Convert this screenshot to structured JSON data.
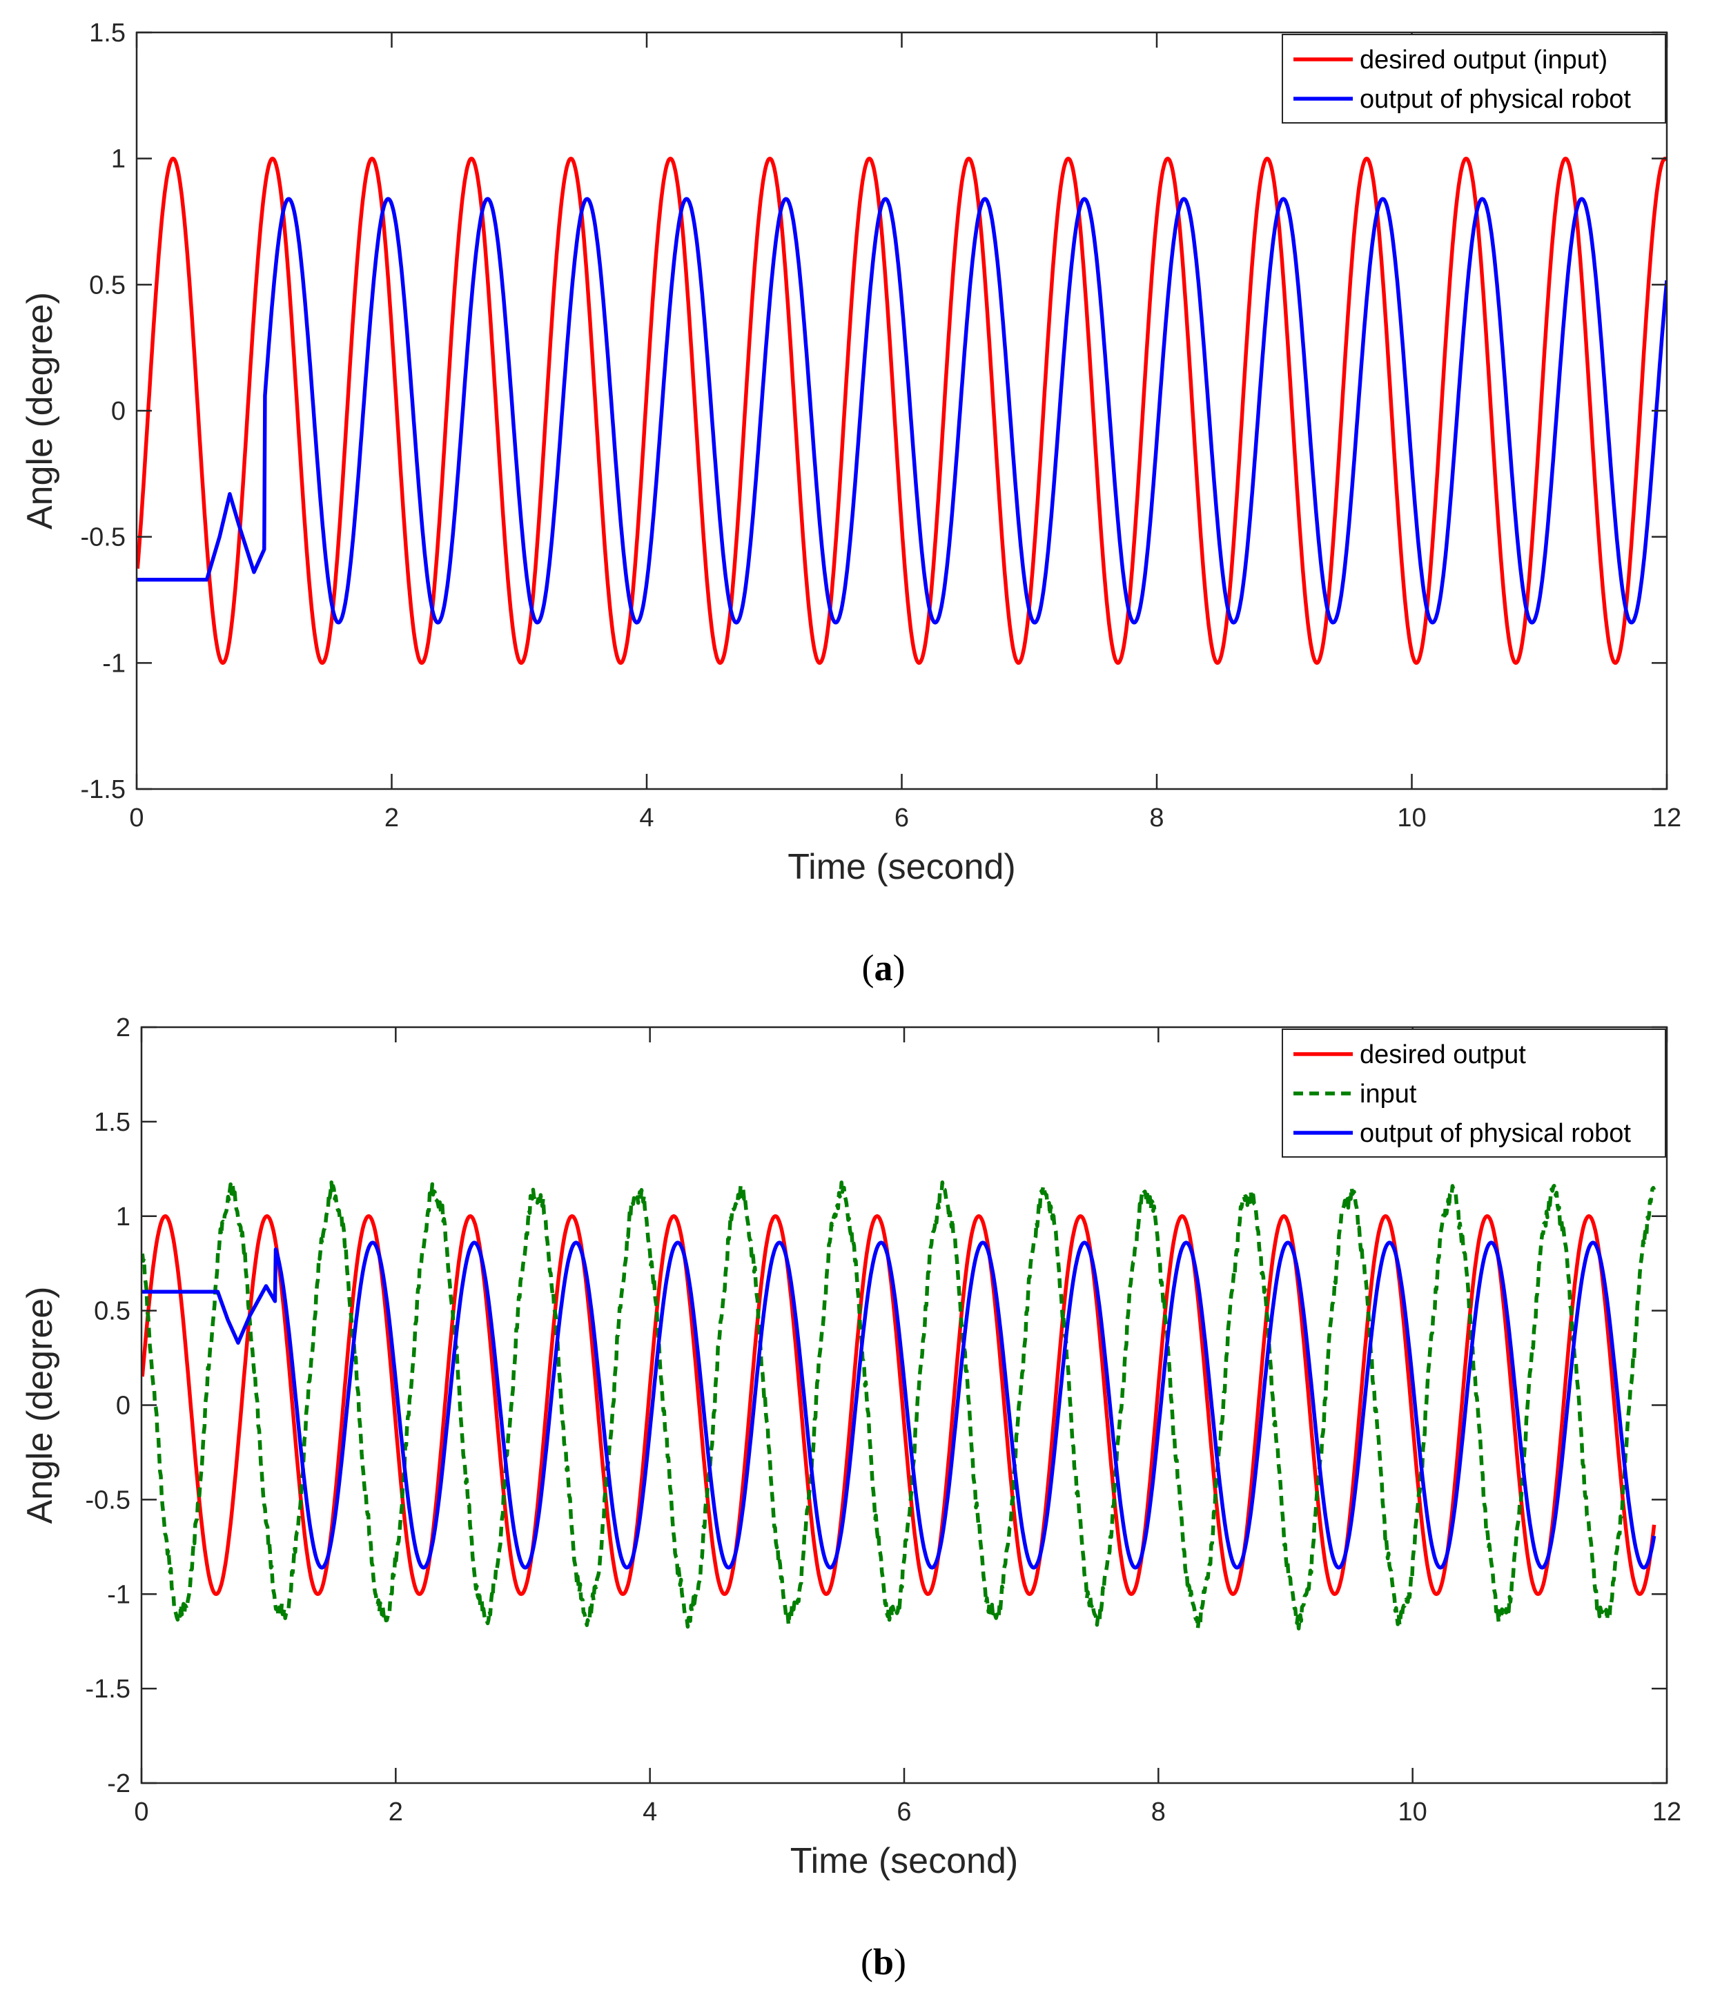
{
  "figure": {
    "captions": [
      {
        "open": "(",
        "letter": "a",
        "close": ")"
      },
      {
        "open": "(",
        "letter": "b",
        "close": ")"
      }
    ]
  },
  "chart_data": [
    {
      "type": "line",
      "panel": "a",
      "xlabel": "Time (second)",
      "ylabel": "Angle (degree)",
      "xlim": [
        0,
        12
      ],
      "ylim": [
        -1.5,
        1.5
      ],
      "xticks": [
        0,
        2,
        4,
        6,
        8,
        10,
        12
      ],
      "xtick_labels": [
        "0",
        "2",
        "4",
        "6",
        "8",
        "10",
        "12"
      ],
      "yticks": [
        1.5,
        1,
        0.5,
        0,
        -0.5,
        -1,
        -1.5
      ],
      "ytick_labels": [
        "1.5",
        "1",
        "0.5",
        "0",
        "-0.5",
        "-1",
        "-1.5"
      ],
      "grid": false,
      "legend_position": "top-right",
      "series": [
        {
          "name": "desired output (input)",
          "color": "#ff0000",
          "style": "solid",
          "model": {
            "kind": "sine",
            "amplitude": 1.0,
            "frequency_hz": 1.282,
            "phase_rad": -0.73,
            "x_start": 0,
            "x_end": 12
          }
        },
        {
          "name": "output of physical robot",
          "color": "#0000ff",
          "style": "solid",
          "model": {
            "kind": "sine",
            "amplitude": 0.84,
            "frequency_hz": 1.282,
            "phase_rad": -1.75,
            "x_start": 0,
            "x_end": 12
          },
          "initial_segment": [
            [
              0,
              -0.67
            ],
            [
              0.55,
              -0.67
            ],
            [
              0.65,
              -0.5
            ],
            [
              0.73,
              -0.33
            ],
            [
              0.8,
              -0.45
            ],
            [
              0.92,
              -0.64
            ],
            [
              1.0,
              -0.55
            ]
          ]
        }
      ]
    },
    {
      "type": "line",
      "panel": "b",
      "xlabel": "Time (second)",
      "ylabel": "Angle (degree)",
      "xlim": [
        0,
        12
      ],
      "ylim": [
        -2,
        2
      ],
      "xticks": [
        0,
        2,
        4,
        6,
        8,
        10,
        12
      ],
      "xtick_labels": [
        "0",
        "2",
        "4",
        "6",
        "8",
        "10",
        "12"
      ],
      "yticks": [
        2,
        1.5,
        1,
        0.5,
        0,
        -0.5,
        -1,
        -1.5,
        -2
      ],
      "ytick_labels": [
        "2",
        "1.5",
        "1",
        "0.5",
        "0",
        "-0.5",
        "-1",
        "-1.5",
        "-2"
      ],
      "grid": false,
      "legend_position": "top-right",
      "series": [
        {
          "name": "desired output",
          "color": "#ff0000",
          "style": "solid",
          "model": {
            "kind": "sine",
            "amplitude": 1.0,
            "frequency_hz": 1.25,
            "phase_rad": 0.1,
            "x_start": 0,
            "x_end": 11.9
          }
        },
        {
          "name": "input",
          "color": "#007f00",
          "style": "dashed",
          "model": {
            "kind": "sine",
            "amplitude": 1.12,
            "frequency_hz": 1.25,
            "phase_rad": 2.3,
            "x_start": 0,
            "x_end": 11.9,
            "noise": 0.07
          }
        },
        {
          "name": "output of physical robot",
          "color": "#0000ff",
          "style": "solid",
          "model": {
            "kind": "sine",
            "amplitude": 0.86,
            "frequency_hz": 1.25,
            "phase_rad": -0.15,
            "x_start": 0,
            "x_end": 11.9
          },
          "initial_segment": [
            [
              0,
              0.6
            ],
            [
              0.6,
              0.6
            ],
            [
              0.68,
              0.45
            ],
            [
              0.76,
              0.33
            ],
            [
              0.85,
              0.47
            ],
            [
              0.98,
              0.63
            ],
            [
              1.05,
              0.55
            ]
          ]
        }
      ]
    }
  ]
}
